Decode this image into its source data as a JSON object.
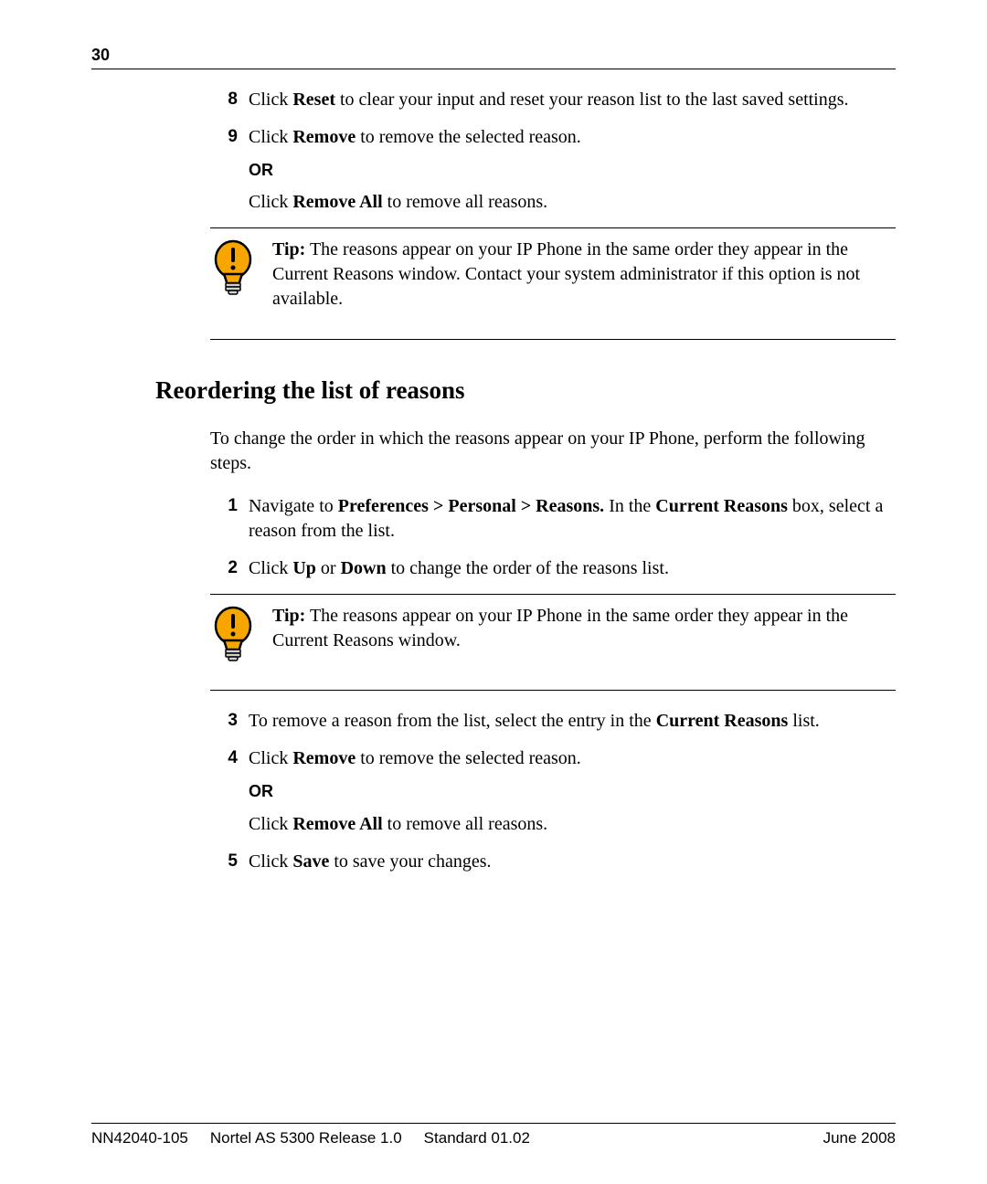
{
  "page_number": "30",
  "top_steps": [
    {
      "num": "8",
      "segments": [
        {
          "t": "Click ",
          "b": false
        },
        {
          "t": "Reset",
          "b": true
        },
        {
          "t": " to clear your input and reset your reason list to the last saved settings.",
          "b": false
        }
      ]
    },
    {
      "num": "9",
      "segments": [
        {
          "t": "Click ",
          "b": false
        },
        {
          "t": "Remove",
          "b": true
        },
        {
          "t": " to remove the selected reason.",
          "b": false
        }
      ],
      "or_label": "OR",
      "or_segments": [
        {
          "t": "Click ",
          "b": false
        },
        {
          "t": "Remove All",
          "b": true
        },
        {
          "t": " to remove all reasons.",
          "b": false
        }
      ]
    }
  ],
  "tip1": {
    "label": "Tip:",
    "text": " The reasons appear on your IP Phone in the same order they appear in the Current Reasons window.  Contact your system administrator if this option is not available."
  },
  "heading": "Reordering the list of reasons",
  "intro": "To change the order in which the reasons appear on your IP Phone, perform the following steps.",
  "bottom_steps_a": [
    {
      "num": "1",
      "segments": [
        {
          "t": "Navigate to ",
          "b": false
        },
        {
          "t": "Preferences > Personal > Reasons.",
          "b": true
        },
        {
          "t": "  In the ",
          "b": false
        },
        {
          "t": "Current Reasons",
          "b": true
        },
        {
          "t": " box, select a reason from the list.",
          "b": false
        }
      ]
    },
    {
      "num": "2",
      "segments": [
        {
          "t": "Click ",
          "b": false
        },
        {
          "t": "Up",
          "b": true
        },
        {
          "t": " or ",
          "b": false
        },
        {
          "t": "Down",
          "b": true
        },
        {
          "t": " to change the order of the reasons list.",
          "b": false
        }
      ]
    }
  ],
  "tip2": {
    "label": "Tip:",
    "text": " The reasons appear on your IP Phone in the same order they appear in the Current Reasons window."
  },
  "bottom_steps_b": [
    {
      "num": "3",
      "segments": [
        {
          "t": "To remove a reason from the list, select the entry in the ",
          "b": false
        },
        {
          "t": "Current Reasons",
          "b": true
        },
        {
          "t": " list.",
          "b": false
        }
      ]
    },
    {
      "num": "4",
      "segments": [
        {
          "t": "Click ",
          "b": false
        },
        {
          "t": "Remove",
          "b": true
        },
        {
          "t": " to remove the selected reason.",
          "b": false
        }
      ],
      "or_label": "OR",
      "or_segments": [
        {
          "t": "Click ",
          "b": false
        },
        {
          "t": "Remove All",
          "b": true
        },
        {
          "t": " to remove all reasons.",
          "b": false
        }
      ]
    },
    {
      "num": "5",
      "segments": [
        {
          "t": "Click ",
          "b": false
        },
        {
          "t": "Save",
          "b": true
        },
        {
          "t": " to save your changes.",
          "b": false
        }
      ]
    }
  ],
  "footer": {
    "left1": "NN42040-105",
    "left2": "Nortel AS 5300 Release 1.0",
    "left3": "Standard  01.02",
    "right": "June 2008"
  },
  "icon": {
    "bulb_fill": "#f7a600",
    "outline": "#000000",
    "exclaim": "#000000"
  }
}
